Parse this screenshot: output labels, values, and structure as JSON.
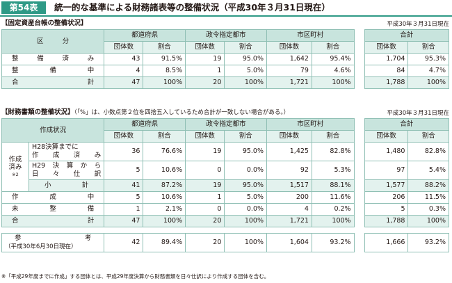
{
  "header": {
    "badge": "第54表",
    "title": "統一的な基準による財務諸表等の整備状況（平成30年３月31日現在）"
  },
  "ledger": {
    "section_title": "【固定資産台帳の整備状況】",
    "as_of": "平成30年３月31日現在",
    "division_label": "区　分",
    "groups": [
      "都道府県",
      "政令指定都市",
      "市区町村",
      "合計"
    ],
    "count_label": "団体数",
    "ratio_label": "割合",
    "rows": [
      {
        "label": "整備済み",
        "values": [
          "43",
          "91.5%",
          "19",
          "95.0%",
          "1,642",
          "95.4%",
          "1,704",
          "95.3%"
        ]
      },
      {
        "label": "整備中",
        "values": [
          "4",
          "8.5%",
          "1",
          "5.0%",
          "79",
          "4.6%",
          "84",
          "4.7%"
        ]
      },
      {
        "label": "合計",
        "values": [
          "47",
          "100%",
          "20",
          "100%",
          "1,721",
          "100%",
          "1,788",
          "100%"
        ]
      }
    ]
  },
  "statements": {
    "section_title": "【財務書類の整備状況】",
    "section_note": "（「%」は、小数点第２位を四捨五入しているため合計が一致しない場合がある。）",
    "as_of": "平成30年３月31日現在",
    "status_label": "作成状況",
    "created_label_1": "作成",
    "created_label_2": "済み",
    "created_mark": "※2",
    "rows": [
      {
        "label_1": "H28決算までに",
        "label_2": "作成済み",
        "values": [
          "36",
          "76.6%",
          "19",
          "95.0%",
          "1,425",
          "82.8%",
          "1,480",
          "82.8%"
        ]
      },
      {
        "label_1": "H29決算から",
        "label_2": "日々仕訳",
        "values": [
          "5",
          "10.6%",
          "0",
          "0.0%",
          "92",
          "5.3%",
          "97",
          "5.4%"
        ]
      },
      {
        "label": "小計",
        "values": [
          "41",
          "87.2%",
          "19",
          "95.0%",
          "1,517",
          "88.1%",
          "1,577",
          "88.2%"
        ]
      },
      {
        "label": "作成中",
        "values": [
          "5",
          "10.6%",
          "1",
          "5.0%",
          "200",
          "11.6%",
          "206",
          "11.5%"
        ]
      },
      {
        "label": "未整備",
        "values": [
          "1",
          "2.1%",
          "0",
          "0.0%",
          "4",
          "0.2%",
          "5",
          "0.3%"
        ]
      },
      {
        "label": "合計",
        "values": [
          "47",
          "100%",
          "20",
          "100%",
          "1,721",
          "100%",
          "1,788",
          "100%"
        ]
      }
    ],
    "reference": {
      "label_1": "参考",
      "label_2": "（平成30年6月30日現在）",
      "values": [
        "42",
        "89.4%",
        "20",
        "100%",
        "1,604",
        "93.2%",
        "1,666",
        "93.2%"
      ]
    }
  },
  "footnote": "※「平成29年度までに作成」する団体とは、平成29年度決算から財務書類を日々仕訳により作成する団体を含む。"
}
